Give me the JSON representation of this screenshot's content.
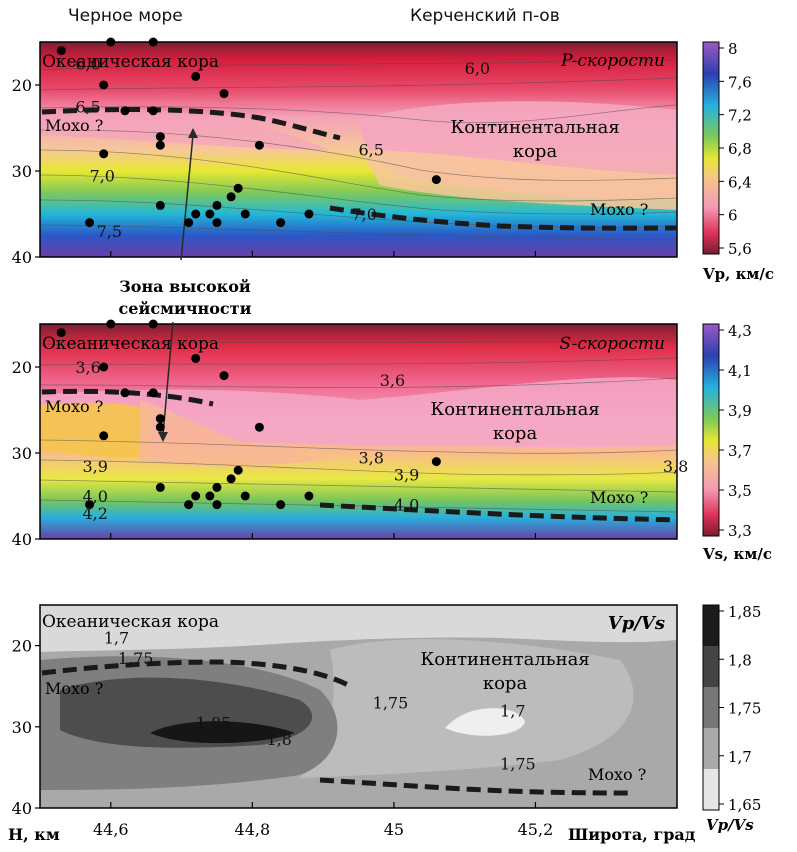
{
  "header": {
    "left_title": "Черное море",
    "right_title": "Керченский п-ов"
  },
  "annotations": {
    "high_seismicity": [
      "Зона высокой",
      "сейсмичности"
    ],
    "oceanic_crust": "Океаническая кора",
    "continental_crust": [
      "Континентальная",
      "кора"
    ],
    "moho": "Мохо ?"
  },
  "colors": {
    "moho_line": "#1a1a1a",
    "event_dot": "#000000"
  },
  "chart_data": [
    {
      "type": "heatmap",
      "panel": "vp",
      "title": "P-скорости",
      "ylim": [
        40,
        15
      ],
      "yticks": [
        20,
        30,
        40
      ],
      "colorbar": {
        "label": "Vp, км/с",
        "ticks": [
          "8",
          "7,6",
          "7,2",
          "6,8",
          "6,4",
          "6",
          "5,6"
        ]
      },
      "contour_labels": [
        {
          "text": "6,0",
          "x": 44.55,
          "y": 17.5
        },
        {
          "text": "6,5",
          "x": 44.55,
          "y": 22.5
        },
        {
          "text": "7,0",
          "x": 44.57,
          "y": 30.5
        },
        {
          "text": "7,5",
          "x": 44.58,
          "y": 37
        },
        {
          "text": "6,0",
          "x": 45.1,
          "y": 18
        },
        {
          "text": "6,5",
          "x": 44.95,
          "y": 27.5
        },
        {
          "text": "7,0",
          "x": 44.94,
          "y": 35
        }
      ]
    },
    {
      "type": "heatmap",
      "panel": "vs",
      "title": "S-скорости",
      "ylim": [
        40,
        15
      ],
      "yticks": [
        20,
        30,
        40
      ],
      "colorbar": {
        "label": "Vs, км/с",
        "ticks": [
          "4,3",
          "4,1",
          "3,9",
          "3,7",
          "3,5",
          "3,3"
        ]
      },
      "contour_labels": [
        {
          "text": "3,6",
          "x": 44.55,
          "y": 20
        },
        {
          "text": "3,9",
          "x": 44.56,
          "y": 31.5
        },
        {
          "text": "4,0",
          "x": 44.56,
          "y": 35
        },
        {
          "text": "4,2",
          "x": 44.56,
          "y": 37
        },
        {
          "text": "3,6",
          "x": 44.98,
          "y": 21.5
        },
        {
          "text": "3,8",
          "x": 44.95,
          "y": 30.5
        },
        {
          "text": "3,9",
          "x": 45.0,
          "y": 32.5
        },
        {
          "text": "4,0",
          "x": 45.0,
          "y": 36
        },
        {
          "text": "3,8",
          "x": 45.38,
          "y": 31.5
        }
      ]
    },
    {
      "type": "heatmap",
      "panel": "vpvs",
      "title": "Vp/Vs",
      "xlabel": "Широта, град",
      "ylabel": "H, км",
      "xlim": [
        44.5,
        45.4
      ],
      "xticks": [
        "44,6",
        "44,8",
        "45",
        "45,2"
      ],
      "xtick_values": [
        44.6,
        44.8,
        45.0,
        45.2
      ],
      "ylim": [
        40,
        15
      ],
      "yticks": [
        20,
        30,
        40
      ],
      "colorbar": {
        "label": "Vp/Vs",
        "ticks": [
          "1,85",
          "1,8",
          "1,75",
          "1,7",
          "1,65"
        ]
      },
      "contour_labels": [
        {
          "text": "1,7",
          "x": 44.59,
          "y": 19
        },
        {
          "text": "1,75",
          "x": 44.61,
          "y": 21.5
        },
        {
          "text": "1,85",
          "x": 44.72,
          "y": 29.5
        },
        {
          "text": "1,8",
          "x": 44.82,
          "y": 31.5
        },
        {
          "text": "1,75",
          "x": 44.97,
          "y": 27
        },
        {
          "text": "1,7",
          "x": 45.15,
          "y": 28
        },
        {
          "text": "1,75",
          "x": 45.15,
          "y": 34.5
        }
      ]
    }
  ],
  "events": [
    [
      44.53,
      16
    ],
    [
      44.6,
      15
    ],
    [
      44.66,
      15
    ],
    [
      44.59,
      20
    ],
    [
      44.72,
      19
    ],
    [
      44.76,
      21
    ],
    [
      44.62,
      23
    ],
    [
      44.66,
      23
    ],
    [
      44.67,
      26
    ],
    [
      44.67,
      27
    ],
    [
      44.59,
      28
    ],
    [
      44.81,
      27
    ],
    [
      44.77,
      33
    ],
    [
      44.78,
      32
    ],
    [
      44.67,
      34
    ],
    [
      44.72,
      35
    ],
    [
      44.74,
      35
    ],
    [
      44.75,
      34
    ],
    [
      44.71,
      36
    ],
    [
      44.79,
      35
    ],
    [
      44.84,
      36
    ],
    [
      44.88,
      35
    ],
    [
      44.57,
      36
    ],
    [
      44.75,
      36
    ],
    [
      45.06,
      31
    ]
  ]
}
